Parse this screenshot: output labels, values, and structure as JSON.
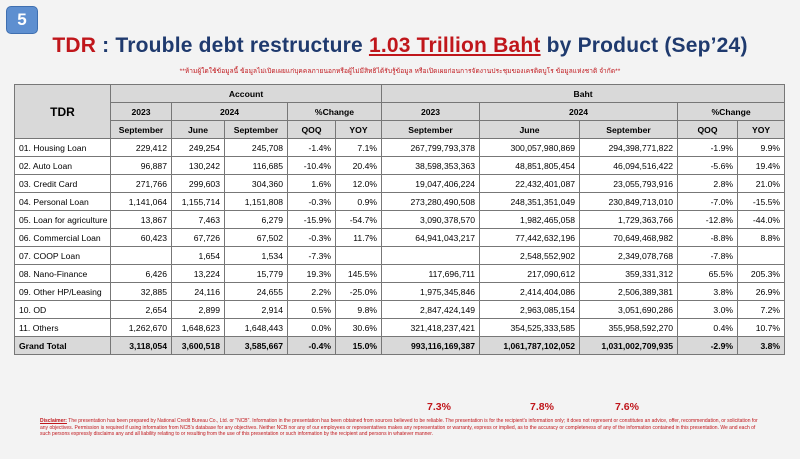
{
  "badge": "5",
  "title": {
    "prefix": "TDR",
    "middle": " : Trouble debt restructure ",
    "highlight": "1.03 Trillion Baht",
    "suffix": " by Product (Sep’24)"
  },
  "subtitle": "**ห้ามผู้ใดใช้ข้อมูลนี้ ข้อมูลไม่เปิดเผยแก่บุคคลภายนอกหรือผู้ไม่มีสิทธิได้รับรู้ข้อมูล หรือเปิดเผยก่อนการจัดงานประชุมของเครดิตบูโร ข้อมูลแห่งชาติ จำกัด**",
  "table": {
    "tdr_label": "TDR",
    "account_label": "Account",
    "baht_label": "Baht",
    "year_2023": "2023",
    "year_2024": "2024",
    "pct_change": "%Change",
    "sep": "September",
    "jun": "June",
    "qoq": "QOQ",
    "yoy": "YOY",
    "rows": [
      {
        "label": "01. Housing Loan",
        "a23": "229,412",
        "a_jun": "249,254",
        "a_sep": "245,708",
        "a_qoq": "-1.4%",
        "a_yoy": "7.1%",
        "b23": "267,799,793,378",
        "b_jun": "300,057,980,869",
        "b_sep": "294,398,771,822",
        "b_qoq": "-1.9%",
        "b_yoy": "9.9%"
      },
      {
        "label": "02. Auto Loan",
        "a23": "96,887",
        "a_jun": "130,242",
        "a_sep": "116,685",
        "a_qoq": "-10.4%",
        "a_yoy": "20.4%",
        "b23": "38,598,353,363",
        "b_jun": "48,851,805,454",
        "b_sep": "46,094,516,422",
        "b_qoq": "-5.6%",
        "b_yoy": "19.4%"
      },
      {
        "label": "03. Credit Card",
        "a23": "271,766",
        "a_jun": "299,603",
        "a_sep": "304,360",
        "a_qoq": "1.6%",
        "a_yoy": "12.0%",
        "b23": "19,047,406,224",
        "b_jun": "22,432,401,087",
        "b_sep": "23,055,793,916",
        "b_qoq": "2.8%",
        "b_yoy": "21.0%"
      },
      {
        "label": "04. Personal Loan",
        "a23": "1,141,064",
        "a_jun": "1,155,714",
        "a_sep": "1,151,808",
        "a_qoq": "-0.3%",
        "a_yoy": "0.9%",
        "b23": "273,280,490,508",
        "b_jun": "248,351,351,049",
        "b_sep": "230,849,713,010",
        "b_qoq": "-7.0%",
        "b_yoy": "-15.5%"
      },
      {
        "label": "05. Loan for agriculture",
        "a23": "13,867",
        "a_jun": "7,463",
        "a_sep": "6,279",
        "a_qoq": "-15.9%",
        "a_yoy": "-54.7%",
        "b23": "3,090,378,570",
        "b_jun": "1,982,465,058",
        "b_sep": "1,729,363,766",
        "b_qoq": "-12.8%",
        "b_yoy": "-44.0%"
      },
      {
        "label": "06. Commercial Loan",
        "a23": "60,423",
        "a_jun": "67,726",
        "a_sep": "67,502",
        "a_qoq": "-0.3%",
        "a_yoy": "11.7%",
        "b23": "64,941,043,217",
        "b_jun": "77,442,632,196",
        "b_sep": "70,649,468,982",
        "b_qoq": "-8.8%",
        "b_yoy": "8.8%"
      },
      {
        "label": "07. COOP Loan",
        "a23": "",
        "a_jun": "1,654",
        "a_sep": "1,534",
        "a_qoq": "-7.3%",
        "a_yoy": "",
        "b23": "",
        "b_jun": "2,548,552,902",
        "b_sep": "2,349,078,768",
        "b_qoq": "-7.8%",
        "b_yoy": ""
      },
      {
        "label": "08. Nano-Finance",
        "a23": "6,426",
        "a_jun": "13,224",
        "a_sep": "15,779",
        "a_qoq": "19.3%",
        "a_yoy": "145.5%",
        "b23": "117,696,711",
        "b_jun": "217,090,612",
        "b_sep": "359,331,312",
        "b_qoq": "65.5%",
        "b_yoy": "205.3%"
      },
      {
        "label": "09. Other HP/Leasing",
        "a23": "32,885",
        "a_jun": "24,116",
        "a_sep": "24,655",
        "a_qoq": "2.2%",
        "a_yoy": "-25.0%",
        "b23": "1,975,345,846",
        "b_jun": "2,414,404,086",
        "b_sep": "2,506,389,381",
        "b_qoq": "3.8%",
        "b_yoy": "26.9%"
      },
      {
        "label": "10. OD",
        "a23": "2,654",
        "a_jun": "2,899",
        "a_sep": "2,914",
        "a_qoq": "0.5%",
        "a_yoy": "9.8%",
        "b23": "2,847,424,149",
        "b_jun": "2,963,085,154",
        "b_sep": "3,051,690,286",
        "b_qoq": "3.0%",
        "b_yoy": "7.2%"
      },
      {
        "label": "11. Others",
        "a23": "1,262,670",
        "a_jun": "1,648,623",
        "a_sep": "1,648,443",
        "a_qoq": "0.0%",
        "a_yoy": "30.6%",
        "b23": "321,418,237,421",
        "b_jun": "354,525,333,585",
        "b_sep": "355,958,592,270",
        "b_qoq": "0.4%",
        "b_yoy": "10.7%"
      }
    ],
    "total": {
      "label": "Grand Total",
      "a23": "3,118,054",
      "a_jun": "3,600,518",
      "a_sep": "3,585,667",
      "a_qoq": "-0.4%",
      "a_yoy": "15.0%",
      "b23": "993,116,169,387",
      "b_jun": "1,061,787,102,052",
      "b_sep": "1,031,002,709,935",
      "b_qoq": "-2.9%",
      "b_yoy": "3.8%"
    }
  },
  "growth": {
    "b23": "7.3%",
    "b_jun": "7.8%",
    "b_sep": "7.6%"
  },
  "disclaimer": {
    "label": "Disclaimer:",
    "text": " The presentation has been prepared by National Credit Bureau Co., Ltd. or \"NCB\". Information in the presentation has been obtained from sources believed to be reliable. The presentation is for the recipient's information only; it does not represent or constitutes an advice, offer, recommendation, or solicitation for any objectives. Permission is required if using information from NCB's database for any objectives. Neither NCB nor any of our employees or representatives makes any representation or warranty, express or implied, as to the accuracy or completeness of any of the information contained in this presentation. We and each of such persons expressly disclaims any and all liability relating to or resulting from the use of this presentation or such information by the recipient and persons in whatever manner."
  }
}
